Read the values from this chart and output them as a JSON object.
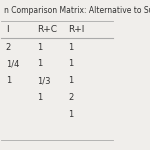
{
  "title": "n Comparison Matrix: Alternative to Su",
  "columns": [
    "I",
    "R+C",
    "R+I",
    ""
  ],
  "rows": [
    [
      "2",
      "1",
      "1",
      ""
    ],
    [
      "1/4",
      "1",
      "1",
      ""
    ],
    [
      "1",
      "1/3",
      "1",
      ""
    ],
    [
      "",
      "1",
      "2",
      ""
    ],
    [
      "",
      "",
      "1",
      ""
    ]
  ],
  "bg_color": "#f0eeeb",
  "header_line_color": "#aaaaaa",
  "title_fontsize": 5.5,
  "cell_fontsize": 6.0,
  "header_fontsize": 6.5,
  "text_color": "#333333"
}
